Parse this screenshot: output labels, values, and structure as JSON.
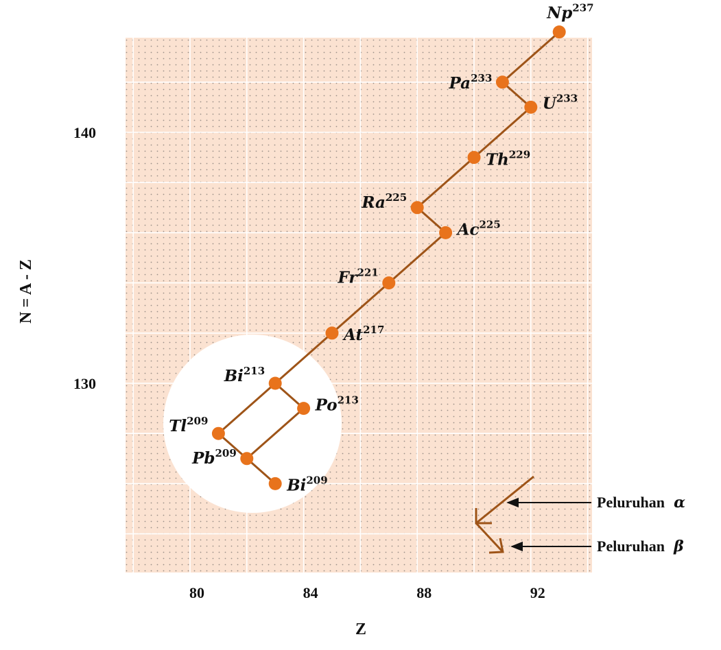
{
  "colors": {
    "plot_bg": "#fbe2d1",
    "dot": "#9a8f88",
    "grid": "#ffffff",
    "path": "#9e5418",
    "node": "#e8731c",
    "highlight": "#ffffff"
  },
  "chart_data": {
    "type": "scatter",
    "xlabel": "Z",
    "ylabel": "N = A - Z",
    "x_ticks": [
      "80",
      "84",
      "88",
      "92"
    ],
    "y_ticks": [
      "140",
      "130"
    ],
    "nuclides": [
      {
        "symbol": "Np",
        "mass": "237",
        "z": 93,
        "n": 144
      },
      {
        "symbol": "Pa",
        "mass": "233",
        "z": 91,
        "n": 142
      },
      {
        "symbol": "U",
        "mass": "233",
        "z": 92,
        "n": 141
      },
      {
        "symbol": "Th",
        "mass": "229",
        "z": 90,
        "n": 139
      },
      {
        "symbol": "Ra",
        "mass": "225",
        "z": 88,
        "n": 137
      },
      {
        "symbol": "Ac",
        "mass": "225",
        "z": 89,
        "n": 136
      },
      {
        "symbol": "Fr",
        "mass": "221",
        "z": 87,
        "n": 134
      },
      {
        "symbol": "At",
        "mass": "217",
        "z": 85,
        "n": 132
      },
      {
        "symbol": "Bi",
        "mass": "213",
        "z": 83,
        "n": 130
      },
      {
        "symbol": "Po",
        "mass": "213",
        "z": 84,
        "n": 129
      },
      {
        "symbol": "Tl",
        "mass": "209",
        "z": 81,
        "n": 128
      },
      {
        "symbol": "Pb",
        "mass": "209",
        "z": 82,
        "n": 127
      },
      {
        "symbol": "Bi",
        "mass": "209",
        "z": 83,
        "n": 126
      }
    ],
    "links": [
      [
        0,
        1
      ],
      [
        1,
        2
      ],
      [
        2,
        3
      ],
      [
        3,
        4
      ],
      [
        4,
        5
      ],
      [
        5,
        6
      ],
      [
        6,
        7
      ],
      [
        7,
        8
      ],
      [
        8,
        9
      ],
      [
        8,
        10
      ],
      [
        9,
        11
      ],
      [
        10,
        11
      ],
      [
        11,
        12
      ]
    ]
  },
  "legend": [
    {
      "label": "Peluruhan",
      "symbol": "α"
    },
    {
      "label": "Peluruhan",
      "symbol": "β"
    }
  ]
}
